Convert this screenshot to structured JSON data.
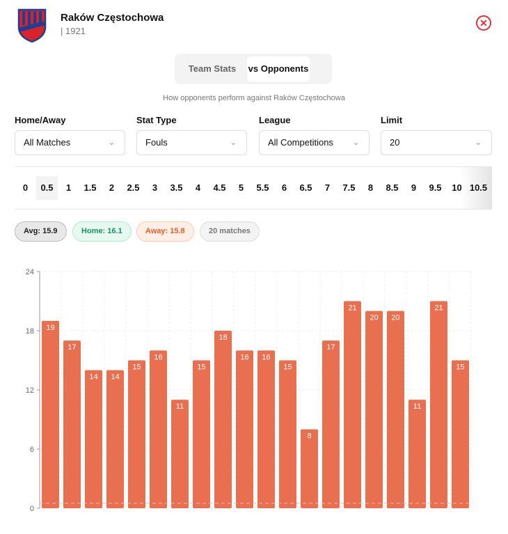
{
  "team": {
    "name": "Raków Częstochowa",
    "founded": "| 1921",
    "logo_text": "RKS RAKÓW CZĘSTOCHOWA 1921"
  },
  "tabs": [
    "Team Stats",
    "vs Opponents"
  ],
  "description": "How opponents perform against Raków Częstochowa",
  "filters": [
    {
      "label": "Home/Away",
      "value": "All Matches"
    },
    {
      "label": "Stat Type",
      "value": "Fouls"
    },
    {
      "label": "League",
      "value": "All Competitions"
    },
    {
      "label": "Limit",
      "value": "20"
    }
  ],
  "thresholds": [
    "0",
    "0.5",
    "1",
    "1.5",
    "2",
    "2.5",
    "3",
    "3.5",
    "4",
    "4.5",
    "5",
    "5.5",
    "6",
    "6.5",
    "7",
    "7.5",
    "8",
    "8.5",
    "9",
    "9.5",
    "10",
    "10.5"
  ],
  "selected_threshold": "0.5",
  "pills": {
    "avg": "Avg: 15.9",
    "home": "Home: 16.1",
    "away": "Away: 15.8",
    "matches": "20 matches"
  },
  "chart_data": {
    "type": "bar",
    "values": [
      19,
      17,
      14,
      14,
      15,
      16,
      11,
      15,
      18,
      16,
      16,
      15,
      8,
      17,
      21,
      20,
      20,
      11,
      21,
      15
    ],
    "ylim": [
      0,
      24
    ],
    "yticks": [
      0,
      6,
      12,
      18,
      24
    ],
    "threshold": 0.5,
    "bar_color": "#e87050"
  }
}
